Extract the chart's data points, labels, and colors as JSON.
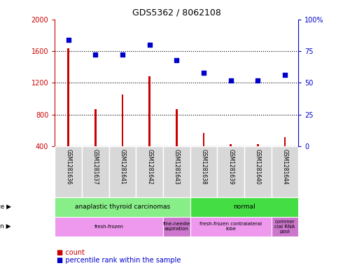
{
  "title": "GDS5362 / 8062108",
  "samples": [
    "GSM1281636",
    "GSM1281637",
    "GSM1281641",
    "GSM1281642",
    "GSM1281643",
    "GSM1281638",
    "GSM1281639",
    "GSM1281640",
    "GSM1281644"
  ],
  "counts": [
    1630,
    870,
    1050,
    1280,
    870,
    570,
    430,
    430,
    510
  ],
  "percentiles": [
    84,
    72,
    72,
    80,
    68,
    58,
    52,
    52,
    56
  ],
  "ylim_left": [
    400,
    2000
  ],
  "ylim_right": [
    0,
    100
  ],
  "yticks_left": [
    400,
    800,
    1200,
    1600,
    2000
  ],
  "yticks_right": [
    0,
    25,
    50,
    75,
    100
  ],
  "bar_color": "#cc0000",
  "dot_color": "#0000cc",
  "disease_state_groups": [
    {
      "label": "anaplastic thyroid carcinomas",
      "start": 0,
      "end": 5,
      "color": "#88ee88"
    },
    {
      "label": "normal",
      "start": 5,
      "end": 9,
      "color": "#44dd44"
    }
  ],
  "specimen_groups": [
    {
      "label": "fresh-frozen",
      "start": 0,
      "end": 4,
      "color": "#ee99ee"
    },
    {
      "label": "fine-needle\naspiration",
      "start": 4,
      "end": 5,
      "color": "#cc77cc"
    },
    {
      "label": "fresh-frozen contralateral\nlobe",
      "start": 5,
      "end": 8,
      "color": "#ee99ee"
    },
    {
      "label": "commer\ncial RNA\npool",
      "start": 8,
      "end": 9,
      "color": "#cc77cc"
    }
  ],
  "left_axis_color": "#cc0000",
  "right_axis_color": "#0000cc",
  "plot_bg_color": "#ffffff",
  "sample_box_color": "#d8d8d8",
  "bar_width": 0.07
}
